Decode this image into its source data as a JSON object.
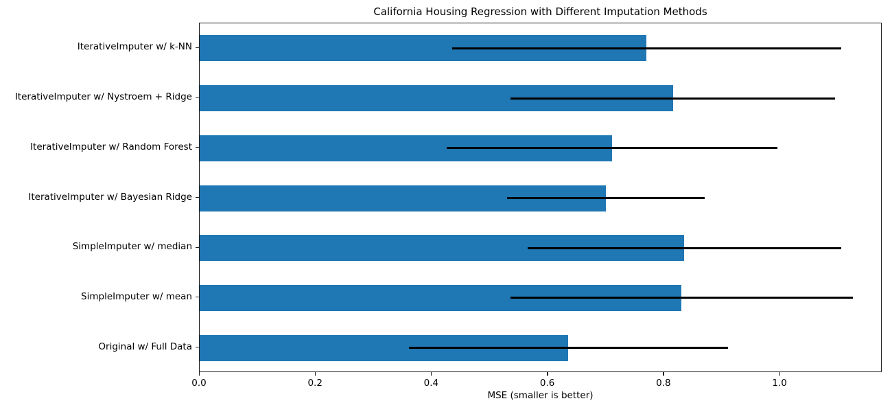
{
  "chart_data": {
    "type": "bar",
    "orientation": "horizontal",
    "title": "California Housing Regression with Different Imputation Methods",
    "xlabel": "MSE (smaller is better)",
    "ylabel": "",
    "xlim": [
      0,
      1.176
    ],
    "xticks": [
      "0.0",
      "0.2",
      "0.4",
      "0.6",
      "0.8",
      "1.0"
    ],
    "xtick_values": [
      0.0,
      0.2,
      0.4,
      0.6,
      0.8,
      1.0
    ],
    "grid": false,
    "legend": "none",
    "bar_color": "#1f77b4",
    "errorbar_color": "#000000",
    "categories": [
      "IterativeImputer w/ k-NN",
      "IterativeImputer w/ Nystroem + Ridge",
      "IterativeImputer w/ Random Forest",
      "IterativeImputer w/ Bayesian Ridge",
      "SimpleImputer w/ median",
      "SimpleImputer w/ mean",
      "Original w/ Full Data"
    ],
    "series": [
      {
        "name": "MSE",
        "values": [
          0.77,
          0.815,
          0.71,
          0.7,
          0.835,
          0.83,
          0.635
        ],
        "xerr": [
          0.335,
          0.28,
          0.285,
          0.17,
          0.27,
          0.295,
          0.275
        ]
      }
    ]
  }
}
